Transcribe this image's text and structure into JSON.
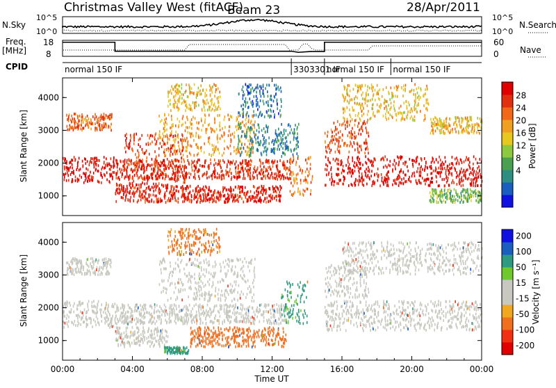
{
  "header": {
    "title": "Christmas Valley West (fitACF)",
    "beam": "Beam 23",
    "date": "28/Apr/2011"
  },
  "noise_panel": {
    "left_label": "N.Sky",
    "right_label": "N.Search",
    "left_ticks": [
      "10^5",
      "10^0"
    ],
    "right_ticks": [
      "10^5",
      "10^0"
    ]
  },
  "freq_panel": {
    "left_label_1": "Freq.",
    "left_label_2": "[MHz]",
    "right_label": "Nave",
    "left_ticks": [
      "18",
      "8"
    ],
    "right_ticks": [
      "60",
      "0"
    ]
  },
  "cpid": {
    "label": "CPID",
    "segments": [
      {
        "text": "normal 150 IF",
        "x_hour": 0
      },
      {
        "text": "3303301 IF",
        "x_hour": 13.1
      },
      {
        "text": "normal 150 IF",
        "x_hour": 15.0
      },
      {
        "text": "normal 150 IF",
        "x_hour": 18.8
      }
    ]
  },
  "chart_data": [
    {
      "type": "heatmap",
      "name": "power",
      "ylabel": "Slant Range [km]",
      "colorbar_label": "Power [dB]",
      "colorbar_ticks": [
        "28",
        "24",
        "20",
        "16",
        "12",
        "8",
        "4"
      ],
      "colors": [
        "#1010e0",
        "#1a5fc0",
        "#2e8f80",
        "#4aa050",
        "#8cc840",
        "#e8c820",
        "#f0a020",
        "#f06818",
        "#e03010",
        "#e00000"
      ],
      "y_ticks": [
        "4000",
        "3000",
        "2000",
        "1000"
      ],
      "ylim": [
        400,
        4600
      ],
      "regions": [
        {
          "t0": 0.0,
          "t1": 3.0,
          "r0": 1400,
          "r1": 2200,
          "val": 28
        },
        {
          "t0": 0.2,
          "t1": 2.8,
          "r0": 3000,
          "r1": 3500,
          "val": 23
        },
        {
          "t0": 3.0,
          "t1": 6.0,
          "r0": 800,
          "r1": 1400,
          "val": 27
        },
        {
          "t0": 3.5,
          "t1": 7.0,
          "r0": 1400,
          "r1": 2900,
          "val": 25
        },
        {
          "t0": 5.5,
          "t1": 11.0,
          "r0": 2200,
          "r1": 3500,
          "val": 20
        },
        {
          "t0": 6.0,
          "t1": 9.0,
          "r0": 3600,
          "r1": 4400,
          "val": 18
        },
        {
          "t0": 3.0,
          "t1": 13.0,
          "r0": 1500,
          "r1": 2100,
          "val": 26
        },
        {
          "t0": 6.0,
          "t1": 12.5,
          "r0": 800,
          "r1": 1300,
          "val": 27
        },
        {
          "t0": 10.0,
          "t1": 13.5,
          "r0": 2200,
          "r1": 3200,
          "val": 7
        },
        {
          "t0": 10.0,
          "t1": 12.5,
          "r0": 3400,
          "r1": 4400,
          "val": 6
        },
        {
          "t0": 13.0,
          "t1": 14.3,
          "r0": 1000,
          "r1": 2200,
          "val": 22
        },
        {
          "t0": 15.0,
          "t1": 24.0,
          "r0": 1300,
          "r1": 2200,
          "val": 28
        },
        {
          "t0": 15.0,
          "t1": 17.5,
          "r0": 2300,
          "r1": 3300,
          "val": 24
        },
        {
          "t0": 16.0,
          "t1": 21.0,
          "r0": 3300,
          "r1": 4400,
          "val": 18
        },
        {
          "t0": 21.0,
          "t1": 24.0,
          "r0": 2900,
          "r1": 3400,
          "val": 18
        },
        {
          "t0": 21.0,
          "t1": 24.0,
          "r0": 800,
          "r1": 1200,
          "val": 12
        }
      ]
    },
    {
      "type": "heatmap",
      "name": "velocity",
      "ylabel": "Slant Range [km]",
      "colorbar_label": "Velocity [m s⁻¹]",
      "colorbar_ticks": [
        "200",
        "100",
        "50",
        "15",
        "-15",
        "-50",
        "-100",
        "-200"
      ],
      "colors": [
        "#e00000",
        "#f03010",
        "#f07020",
        "#f0a820",
        "#c8c8c0",
        "#c8c8c0",
        "#70c830",
        "#2e9a80",
        "#1a5fc0",
        "#1010e0"
      ],
      "y_ticks": [
        "4000",
        "3000",
        "2000",
        "1000"
      ],
      "ylim": [
        400,
        4600
      ],
      "regions": [
        {
          "t0": 0.0,
          "t1": 3.0,
          "r0": 1400,
          "r1": 2200,
          "val": 0
        },
        {
          "t0": 0.2,
          "t1": 2.8,
          "r0": 3000,
          "r1": 3500,
          "val": 0
        },
        {
          "t0": 3.0,
          "t1": 6.0,
          "r0": 800,
          "r1": 1400,
          "val": 0
        },
        {
          "t0": 3.0,
          "t1": 13.0,
          "r0": 1500,
          "r1": 2100,
          "val": 0
        },
        {
          "t0": 5.5,
          "t1": 11.0,
          "r0": 2200,
          "r1": 3500,
          "val": 0
        },
        {
          "t0": 6.0,
          "t1": 9.0,
          "r0": 3600,
          "r1": 4400,
          "val": -60
        },
        {
          "t0": 5.8,
          "t1": 7.2,
          "r0": 600,
          "r1": 800,
          "val": 60
        },
        {
          "t0": 7.3,
          "t1": 12.8,
          "r0": 800,
          "r1": 1400,
          "val": -70
        },
        {
          "t0": 12.5,
          "t1": 14.0,
          "r0": 1500,
          "r1": 2800,
          "val": 60
        },
        {
          "t0": 15.0,
          "t1": 24.0,
          "r0": 1300,
          "r1": 2200,
          "val": 0
        },
        {
          "t0": 15.0,
          "t1": 17.5,
          "r0": 2300,
          "r1": 3300,
          "val": 0
        },
        {
          "t0": 16.0,
          "t1": 24.0,
          "r0": 3000,
          "r1": 4000,
          "val": 0
        }
      ]
    }
  ],
  "time_axis": {
    "label": "Time UT",
    "ticks": [
      "00:00",
      "04:00",
      "08:00",
      "12:00",
      "16:00",
      "20:00",
      "00:00"
    ],
    "xlim_hours": [
      0,
      24
    ]
  }
}
